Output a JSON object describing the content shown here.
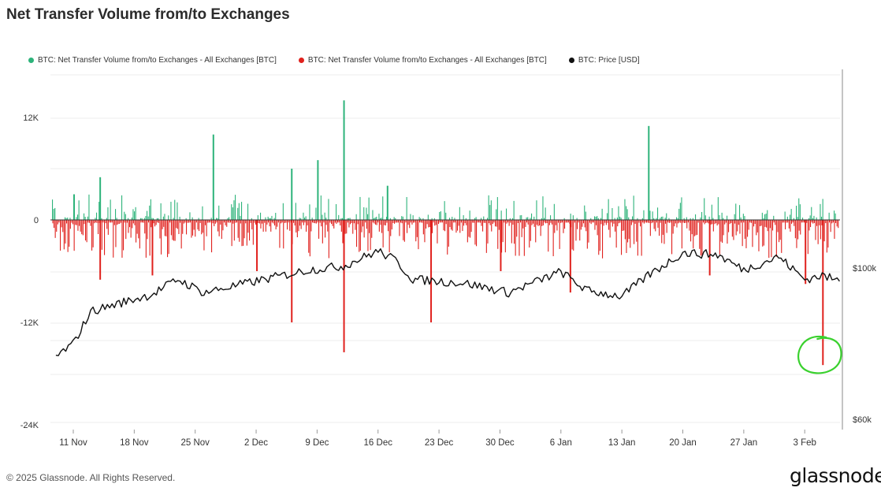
{
  "header": {
    "title": "Net Transfer Volume from/to Exchanges"
  },
  "legend": [
    {
      "label": "BTC: Net Transfer Volume from/to Exchanges - All Exchanges [BTC]",
      "color": "#2db37a"
    },
    {
      "label": "BTC: Net Transfer Volume from/to Exchanges - All Exchanges [BTC]",
      "color": "#e0211d"
    },
    {
      "label": "BTC: Price [USD]",
      "color": "#111111"
    }
  ],
  "footer": {
    "copyright": "© 2025 Glassnode. All Rights Reserved.",
    "logo": "glassnode"
  },
  "chart_data": {
    "type": "bar",
    "x_ticks": [
      "11 Nov",
      "18 Nov",
      "25 Nov",
      "2 Dec",
      "9 Dec",
      "16 Dec",
      "23 Dec",
      "30 Dec",
      "6 Jan",
      "13 Jan",
      "20 Jan",
      "27 Jan",
      "3 Feb"
    ],
    "y_left": {
      "ticks": [
        "12K",
        "0",
        "-12K",
        "-24K"
      ],
      "ylim": [
        -24000,
        12000
      ]
    },
    "y_right": {
      "ticks": [
        "$100k",
        "$60k"
      ],
      "ylim": [
        60000,
        100000
      ]
    },
    "inflow_spikes": [
      {
        "date": "11 Nov",
        "value": 3000
      },
      {
        "date": "14 Nov",
        "value": 5000
      },
      {
        "date": "27 Nov",
        "value": 10000
      },
      {
        "date": "6 Dec",
        "value": 6000
      },
      {
        "date": "9 Dec",
        "value": 7000
      },
      {
        "date": "12 Dec",
        "value": 14000
      },
      {
        "date": "17 Dec",
        "value": 4000
      },
      {
        "date": "16 Jan",
        "value": 11000
      }
    ],
    "outflow_spikes": [
      {
        "date": "14 Nov",
        "value": -7000
      },
      {
        "date": "20 Nov",
        "value": -6500
      },
      {
        "date": "2 Dec",
        "value": -6000
      },
      {
        "date": "6 Dec",
        "value": -12000
      },
      {
        "date": "12 Dec",
        "value": -15500
      },
      {
        "date": "22 Dec",
        "value": -12000
      },
      {
        "date": "30 Dec",
        "value": -6000
      },
      {
        "date": "7 Jan",
        "value": -8500
      },
      {
        "date": "23 Jan",
        "value": -6500
      },
      {
        "date": "3 Feb",
        "value": -7500
      },
      {
        "date": "5 Feb",
        "value": -17000
      }
    ],
    "price_series": {
      "name": "BTC: Price [USD]",
      "points": [
        [
          "9 Nov",
          76500
        ],
        [
          "11 Nov",
          80000
        ],
        [
          "13 Nov",
          88500
        ],
        [
          "16 Nov",
          90500
        ],
        [
          "20 Nov",
          93000
        ],
        [
          "23 Nov",
          97000
        ],
        [
          "26 Nov",
          93500
        ],
        [
          "1 Dec",
          96000
        ],
        [
          "5 Dec",
          98000
        ],
        [
          "8 Dec",
          99500
        ],
        [
          "12 Dec",
          100500
        ],
        [
          "16 Dec",
          104500
        ],
        [
          "18 Dec",
          102000
        ],
        [
          "20 Dec",
          97000
        ],
        [
          "26 Dec",
          96000
        ],
        [
          "31 Dec",
          93500
        ],
        [
          "6 Jan",
          99000
        ],
        [
          "9 Jan",
          94000
        ],
        [
          "13 Jan",
          92500
        ],
        [
          "16 Jan",
          98000
        ],
        [
          "20 Jan",
          104000
        ],
        [
          "24 Jan",
          103500
        ],
        [
          "27 Jan",
          99500
        ],
        [
          "31 Jan",
          103000
        ],
        [
          "3 Feb",
          97000
        ],
        [
          "5 Feb",
          98000
        ],
        [
          "7 Feb",
          96500
        ]
      ]
    },
    "annotation": {
      "shape": "circle",
      "color": "#3ad12e",
      "at": "5 Feb"
    }
  }
}
